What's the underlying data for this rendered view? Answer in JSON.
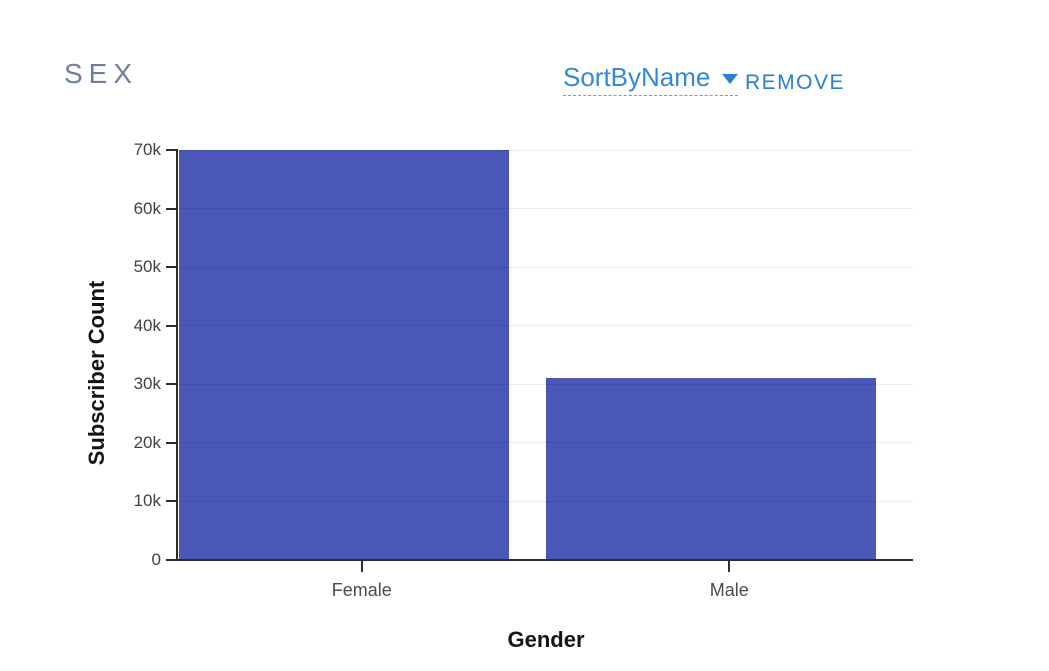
{
  "header": {
    "title": "SEX",
    "sort_label": "SortByName",
    "remove_label": "REMOVE"
  },
  "icons": {
    "sort_caret": "chevron-down"
  },
  "colors": {
    "bar": "#4a56b8",
    "link_blue": "#3487dd",
    "remove_blue": "#2a7cd4",
    "title_gray_blue": "#6f7ea3",
    "axis_line": "#2d2d2d",
    "gridline": "#ebebeb",
    "tick_text": "#424242",
    "axis_title_text": "#141414"
  },
  "chart_data": {
    "type": "bar",
    "title": "SEX",
    "categories": [
      "Female",
      "Male"
    ],
    "values": [
      70000,
      31000
    ],
    "xlabel": "Gender",
    "ylabel": "Subscriber Count",
    "ylim": [
      0,
      70000
    ],
    "yticks": [
      0,
      10000,
      20000,
      30000,
      40000,
      50000,
      60000,
      70000
    ],
    "ytick_labels": [
      "0",
      "10k",
      "20k",
      "30k",
      "40k",
      "50k",
      "60k",
      "70k"
    ],
    "grid": true,
    "legend": false,
    "bar_color": "#4a56b8"
  }
}
